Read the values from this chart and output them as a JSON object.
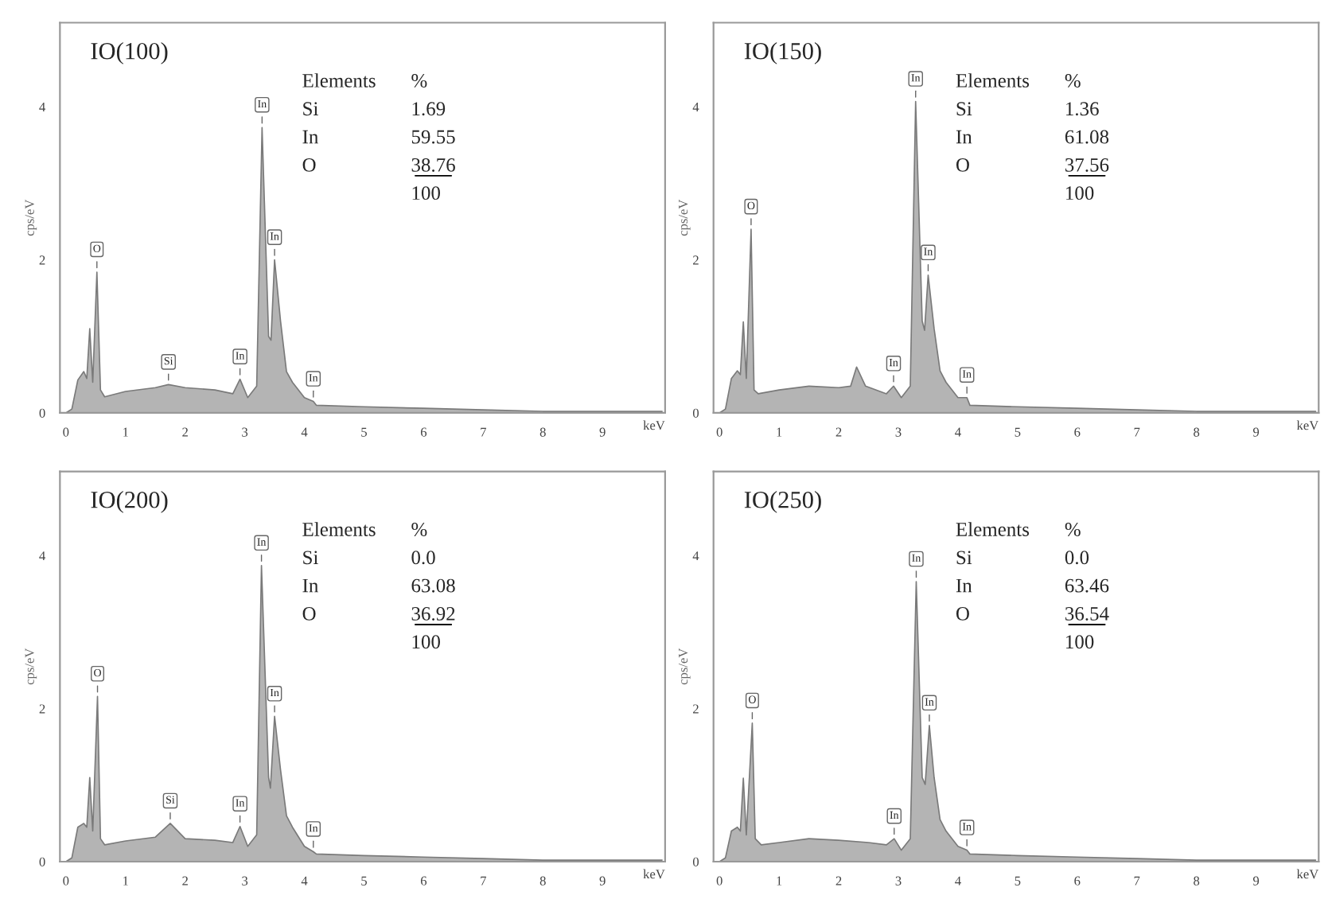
{
  "chart_data": [
    {
      "type": "area",
      "title": "IO(100)",
      "ylabel": "cps/eV",
      "xlabel": "keV",
      "xlim": [
        -0.1,
        10.05
      ],
      "ylim": [
        0,
        5.1
      ],
      "yticks": [
        0,
        2,
        4
      ],
      "xticks": [
        0,
        1,
        2,
        3,
        4,
        5,
        6,
        7,
        8,
        9
      ],
      "grid": false,
      "x": [
        0,
        0.1,
        0.2,
        0.3,
        0.35,
        0.4,
        0.45,
        0.52,
        0.58,
        0.65,
        1.0,
        1.5,
        1.72,
        2.0,
        2.5,
        2.8,
        2.92,
        3.05,
        3.2,
        3.29,
        3.4,
        3.44,
        3.5,
        3.6,
        3.7,
        3.8,
        4.0,
        4.15,
        4.2,
        5,
        6,
        7,
        8,
        9,
        10
      ],
      "series": [
        {
          "color": "#b4b4b4",
          "values": [
            0,
            0.05,
            0.43,
            0.54,
            0.45,
            1.1,
            0.4,
            1.84,
            0.3,
            0.21,
            0.28,
            0.33,
            0.37,
            0.33,
            0.3,
            0.25,
            0.44,
            0.2,
            0.35,
            3.73,
            1.0,
            0.95,
            2.0,
            1.2,
            0.54,
            0.4,
            0.2,
            0.15,
            0.1,
            0.08,
            0.06,
            0.04,
            0.02,
            0.02,
            0.02
          ]
        }
      ],
      "annotations": [
        {
          "text": "O",
          "x": 0.52,
          "y": 1.84
        },
        {
          "text": "Si",
          "x": 1.72,
          "y": 0.37
        },
        {
          "text": "In",
          "x": 2.92,
          "y": 0.44
        },
        {
          "text": "In",
          "x": 3.29,
          "y": 3.73
        },
        {
          "text": "In",
          "x": 3.5,
          "y": 2.0
        },
        {
          "text": "In",
          "x": 4.15,
          "y": 0.15
        },
        "Elements",
        "%",
        "Si",
        "1.69",
        "In",
        "59.55",
        "O",
        "38.76",
        "100"
      ]
    },
    {
      "type": "area",
      "title": "IO(150)",
      "ylabel": "cps/eV",
      "xlabel": "keV",
      "xlim": [
        -0.1,
        10.05
      ],
      "ylim": [
        0,
        5.1
      ],
      "yticks": [
        0,
        2,
        4
      ],
      "xticks": [
        0,
        1,
        2,
        3,
        4,
        5,
        6,
        7,
        8,
        9
      ],
      "grid": false,
      "x": [
        0,
        0.1,
        0.2,
        0.3,
        0.35,
        0.4,
        0.45,
        0.53,
        0.58,
        0.65,
        1.0,
        1.5,
        2.0,
        2.2,
        2.3,
        2.45,
        2.8,
        2.92,
        3.05,
        3.2,
        3.29,
        3.4,
        3.44,
        3.5,
        3.6,
        3.7,
        3.8,
        4.0,
        4.15,
        4.2,
        5,
        6,
        7,
        8,
        9,
        10
      ],
      "series": [
        {
          "color": "#b4b4b4",
          "values": [
            0,
            0.05,
            0.45,
            0.55,
            0.5,
            1.19,
            0.45,
            2.4,
            0.3,
            0.25,
            0.3,
            0.35,
            0.33,
            0.35,
            0.6,
            0.35,
            0.25,
            0.35,
            0.2,
            0.35,
            4.07,
            1.2,
            1.08,
            1.8,
            1.1,
            0.55,
            0.4,
            0.2,
            0.2,
            0.1,
            0.08,
            0.06,
            0.04,
            0.02,
            0.02,
            0.02
          ]
        }
      ],
      "annotations": [
        {
          "text": "O",
          "x": 0.53,
          "y": 2.4
        },
        {
          "text": "In",
          "x": 2.92,
          "y": 0.35
        },
        {
          "text": "In",
          "x": 3.29,
          "y": 4.07
        },
        {
          "text": "In",
          "x": 3.5,
          "y": 1.8
        },
        {
          "text": "In",
          "x": 4.15,
          "y": 0.2
        },
        "Elements",
        "%",
        "Si",
        "1.36",
        "In",
        "61.08",
        "O",
        "37.56",
        "100"
      ]
    },
    {
      "type": "area",
      "title": "IO(200)",
      "ylabel": "cps/eV",
      "xlabel": "keV",
      "xlim": [
        -0.1,
        10.05
      ],
      "ylim": [
        0,
        5.1
      ],
      "yticks": [
        0,
        2,
        4
      ],
      "xticks": [
        0,
        1,
        2,
        3,
        4,
        5,
        6,
        7,
        8,
        9
      ],
      "grid": false,
      "x": [
        0,
        0.1,
        0.2,
        0.3,
        0.35,
        0.4,
        0.45,
        0.53,
        0.58,
        0.65,
        1.0,
        1.5,
        1.75,
        2.0,
        2.5,
        2.8,
        2.92,
        3.05,
        3.2,
        3.28,
        3.4,
        3.43,
        3.5,
        3.6,
        3.7,
        3.8,
        4.0,
        4.15,
        4.2,
        5,
        6,
        7,
        8,
        9,
        10
      ],
      "series": [
        {
          "color": "#b4b4b4",
          "values": [
            0,
            0.05,
            0.45,
            0.5,
            0.45,
            1.1,
            0.4,
            2.16,
            0.3,
            0.22,
            0.27,
            0.32,
            0.5,
            0.3,
            0.28,
            0.25,
            0.46,
            0.2,
            0.35,
            3.87,
            1.1,
            0.96,
            1.9,
            1.2,
            0.6,
            0.45,
            0.2,
            0.13,
            0.1,
            0.08,
            0.06,
            0.04,
            0.02,
            0.02,
            0.02
          ]
        }
      ],
      "annotations": [
        {
          "text": "O",
          "x": 0.53,
          "y": 2.16
        },
        {
          "text": "Si",
          "x": 1.75,
          "y": 0.5
        },
        {
          "text": "In",
          "x": 2.92,
          "y": 0.46
        },
        {
          "text": "In",
          "x": 3.28,
          "y": 3.87
        },
        {
          "text": "In",
          "x": 3.5,
          "y": 1.9
        },
        {
          "text": "In",
          "x": 4.15,
          "y": 0.13
        },
        "Elements",
        "%",
        "Si",
        "0.0",
        "In",
        "63.08",
        "O",
        "36.92",
        "100"
      ]
    },
    {
      "type": "area",
      "title": "IO(250)",
      "ylabel": "cps/eV",
      "xlabel": "keV",
      "xlim": [
        -0.1,
        10.05
      ],
      "ylim": [
        0,
        5.1
      ],
      "yticks": [
        0,
        2,
        4
      ],
      "xticks": [
        0,
        1,
        2,
        3,
        4,
        5,
        6,
        7,
        8,
        9
      ],
      "grid": false,
      "x": [
        0,
        0.1,
        0.2,
        0.3,
        0.35,
        0.4,
        0.45,
        0.55,
        0.6,
        0.7,
        1.0,
        1.5,
        2.0,
        2.5,
        2.8,
        2.93,
        3.05,
        3.2,
        3.3,
        3.4,
        3.45,
        3.52,
        3.6,
        3.7,
        3.8,
        4.0,
        4.15,
        4.2,
        5,
        6,
        7,
        8,
        9,
        10
      ],
      "series": [
        {
          "color": "#b4b4b4",
          "values": [
            0,
            0.05,
            0.4,
            0.45,
            0.4,
            1.09,
            0.35,
            1.81,
            0.3,
            0.22,
            0.25,
            0.3,
            0.28,
            0.25,
            0.22,
            0.3,
            0.15,
            0.3,
            3.66,
            1.1,
            1.01,
            1.78,
            1.1,
            0.55,
            0.4,
            0.2,
            0.15,
            0.1,
            0.08,
            0.06,
            0.04,
            0.02,
            0.02,
            0.02
          ]
        }
      ],
      "annotations": [
        {
          "text": "O",
          "x": 0.55,
          "y": 1.81
        },
        {
          "text": "In",
          "x": 2.93,
          "y": 0.3
        },
        {
          "text": "In",
          "x": 3.3,
          "y": 3.66
        },
        {
          "text": "In",
          "x": 3.52,
          "y": 1.78
        },
        {
          "text": "In",
          "x": 4.15,
          "y": 0.15
        },
        "Elements",
        "%",
        "Si",
        "0.0",
        "In",
        "63.46",
        "O",
        "36.54",
        "100"
      ]
    }
  ]
}
